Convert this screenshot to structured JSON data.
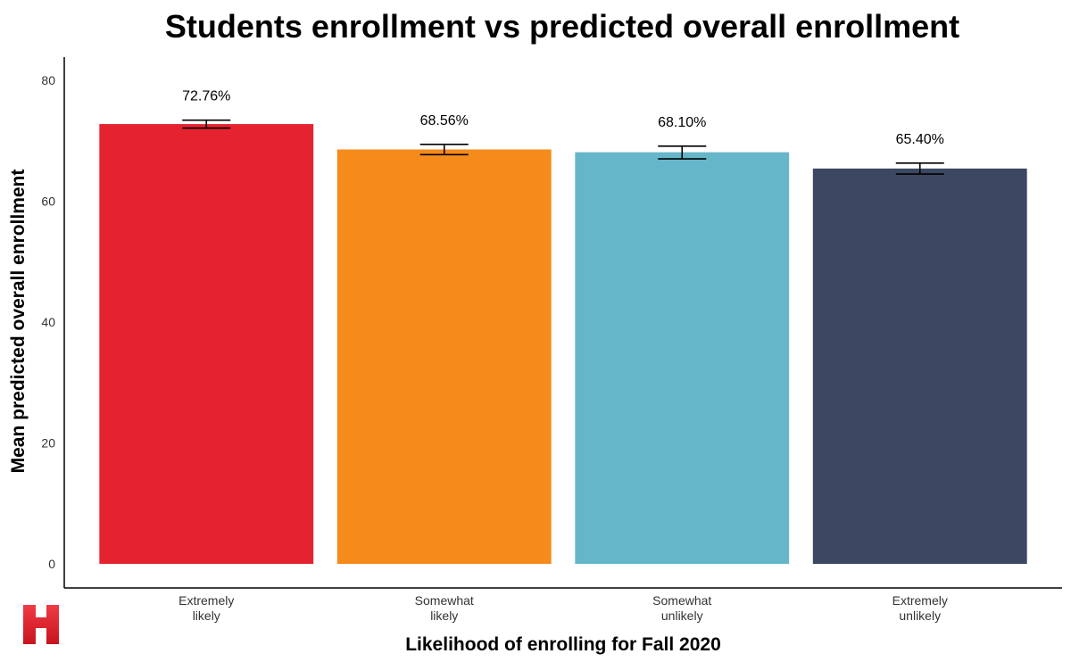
{
  "chart_data": {
    "type": "bar",
    "title": "Students enrollment vs predicted overall enrollment",
    "xlabel": "Likelihood of enrolling for Fall 2020",
    "ylabel": "Mean predicted overall enrollment",
    "ylim": [
      0,
      80
    ],
    "yticks": [
      0,
      20,
      40,
      60,
      80
    ],
    "grid": false,
    "categories": [
      [
        "Extremely",
        "likely"
      ],
      [
        "Somewhat",
        "likely"
      ],
      [
        "Somewhat",
        "unlikely"
      ],
      [
        "Extremely",
        "unlikely"
      ]
    ],
    "values": [
      72.76,
      68.56,
      68.1,
      65.4
    ],
    "error_low": [
      72.1,
      67.7,
      67.0,
      64.5
    ],
    "error_high": [
      73.4,
      69.4,
      69.1,
      66.3
    ],
    "data_labels": [
      "72.76%",
      "68.56%",
      "68.10%",
      "65.40%"
    ],
    "colors": [
      "#E52330",
      "#F58B1B",
      "#66B6CA",
      "#3C4761"
    ]
  },
  "logo": {
    "name": "H",
    "color": "#D91F2A"
  }
}
